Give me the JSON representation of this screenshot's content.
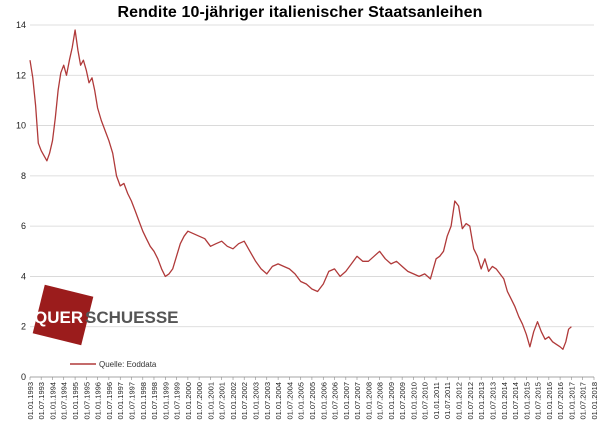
{
  "chart_data": {
    "type": "line",
    "title": "Rendite 10-jähriger italienischer Staatsanleihen",
    "xlabel": "",
    "ylabel": "",
    "ylim": [
      0,
      14
    ],
    "y_ticks": [
      0,
      2,
      4,
      6,
      8,
      10,
      12,
      14
    ],
    "x_ticks": [
      "01.01.1993",
      "01.07.1993",
      "01.01.1994",
      "01.07.1994",
      "01.01.1995",
      "01.07.1995",
      "01.01.1996",
      "01.07.1996",
      "01.01.1997",
      "01.07.1997",
      "01.01.1998",
      "01.07.1998",
      "01.01.1999",
      "01.07.1999",
      "01.01.2000",
      "01.07.2000",
      "01.01.2001",
      "01.07.2001",
      "01.01.2002",
      "01.07.2002",
      "01.01.2003",
      "01.07.2003",
      "01.01.2004",
      "01.07.2004",
      "01.01.2005",
      "01.07.2005",
      "01.01.2006",
      "01.07.2006",
      "01.01.2007",
      "01.07.2007",
      "01.01.2008",
      "01.07.2008",
      "01.01.2009",
      "01.07.2009",
      "01.01.2010",
      "01.07.2010",
      "01.01.2011",
      "01.07.2011",
      "01.01.2012",
      "01.07.2012",
      "01.01.2013",
      "01.07.2013",
      "01.01.2014",
      "01.07.2014",
      "01.01.2015",
      "01.07.2015",
      "01.01.2016",
      "01.07.2016",
      "01.01.2017",
      "01.07.2017",
      "01.01.2018"
    ],
    "grid": "horizontal",
    "legend_position": "bottom-left",
    "series": [
      {
        "name": "Quelle: Eoddata",
        "color": "#b03a3a",
        "x": [
          "1993-01-01",
          "1993-02-15",
          "1993-04-01",
          "1993-05-15",
          "1993-07-01",
          "1993-08-15",
          "1993-10-01",
          "1993-11-15",
          "1994-01-01",
          "1994-02-15",
          "1994-04-01",
          "1994-05-15",
          "1994-07-01",
          "1994-08-15",
          "1994-10-01",
          "1994-11-15",
          "1995-01-01",
          "1995-02-15",
          "1995-04-01",
          "1995-05-15",
          "1995-07-01",
          "1995-08-15",
          "1995-10-01",
          "1995-11-15",
          "1996-01-01",
          "1996-03-01",
          "1996-05-01",
          "1996-07-01",
          "1996-09-01",
          "1996-11-01",
          "1997-01-01",
          "1997-03-01",
          "1997-05-01",
          "1997-07-01",
          "1997-09-01",
          "1997-11-01",
          "1998-01-01",
          "1998-03-01",
          "1998-05-01",
          "1998-07-01",
          "1998-09-01",
          "1998-11-01",
          "1999-01-01",
          "1999-03-01",
          "1999-05-01",
          "1999-07-01",
          "1999-09-01",
          "1999-11-01",
          "2000-01-01",
          "2000-04-01",
          "2000-07-01",
          "2000-10-01",
          "2001-01-01",
          "2001-04-01",
          "2001-07-01",
          "2001-10-01",
          "2002-01-01",
          "2002-04-01",
          "2002-07-01",
          "2002-10-01",
          "2003-01-01",
          "2003-04-01",
          "2003-07-01",
          "2003-10-01",
          "2004-01-01",
          "2004-04-01",
          "2004-07-01",
          "2004-10-01",
          "2005-01-01",
          "2005-04-01",
          "2005-07-01",
          "2005-10-01",
          "2006-01-01",
          "2006-04-01",
          "2006-07-01",
          "2006-10-01",
          "2007-01-01",
          "2007-04-01",
          "2007-07-01",
          "2007-10-01",
          "2008-01-01",
          "2008-04-01",
          "2008-07-01",
          "2008-10-01",
          "2009-01-01",
          "2009-04-01",
          "2009-07-01",
          "2009-10-01",
          "2010-01-01",
          "2010-04-01",
          "2010-07-01",
          "2010-10-01",
          "2011-01-01",
          "2011-03-01",
          "2011-05-01",
          "2011-07-01",
          "2011-09-01",
          "2011-11-01",
          "2012-01-01",
          "2012-03-01",
          "2012-05-01",
          "2012-07-01",
          "2012-09-01",
          "2012-11-01",
          "2013-01-01",
          "2013-03-01",
          "2013-05-01",
          "2013-07-01",
          "2013-09-01",
          "2013-11-01",
          "2014-01-01",
          "2014-03-01",
          "2014-05-01",
          "2014-07-01",
          "2014-09-01",
          "2014-11-01",
          "2015-01-01",
          "2015-03-01",
          "2015-05-01",
          "2015-07-01",
          "2015-09-01",
          "2015-11-01",
          "2016-01-01",
          "2016-03-01",
          "2016-05-01",
          "2016-07-01",
          "2016-08-15",
          "2016-10-01",
          "2016-11-15",
          "2016-12-31"
        ],
        "y": [
          12.6,
          11.9,
          10.8,
          9.3,
          9.0,
          8.8,
          8.6,
          8.9,
          9.4,
          10.3,
          11.4,
          12.1,
          12.4,
          12.0,
          12.6,
          13.1,
          13.8,
          13.0,
          12.4,
          12.6,
          12.2,
          11.7,
          11.9,
          11.4,
          10.7,
          10.2,
          9.8,
          9.4,
          8.9,
          8.0,
          7.6,
          7.7,
          7.3,
          7.0,
          6.6,
          6.2,
          5.8,
          5.5,
          5.2,
          5.0,
          4.7,
          4.3,
          4.0,
          4.1,
          4.3,
          4.8,
          5.3,
          5.6,
          5.8,
          5.7,
          5.6,
          5.5,
          5.2,
          5.3,
          5.4,
          5.2,
          5.1,
          5.3,
          5.4,
          5.0,
          4.6,
          4.3,
          4.1,
          4.4,
          4.5,
          4.4,
          4.3,
          4.1,
          3.8,
          3.7,
          3.5,
          3.4,
          3.7,
          4.2,
          4.3,
          4.0,
          4.2,
          4.5,
          4.8,
          4.6,
          4.6,
          4.8,
          5.0,
          4.7,
          4.5,
          4.6,
          4.4,
          4.2,
          4.1,
          4.0,
          4.1,
          3.9,
          4.7,
          4.8,
          5.0,
          5.6,
          6.0,
          7.0,
          6.8,
          5.9,
          6.1,
          6.0,
          5.1,
          4.8,
          4.3,
          4.7,
          4.2,
          4.4,
          4.3,
          4.1,
          3.9,
          3.4,
          3.1,
          2.8,
          2.4,
          2.1,
          1.7,
          1.2,
          1.8,
          2.2,
          1.8,
          1.5,
          1.6,
          1.4,
          1.3,
          1.2,
          1.1,
          1.4,
          1.9,
          2.0
        ]
      }
    ]
  },
  "legend": {
    "label": "Quelle: Eoddata"
  },
  "logo": {
    "text_left": "QUER",
    "text_right": "SCHUESSE"
  }
}
